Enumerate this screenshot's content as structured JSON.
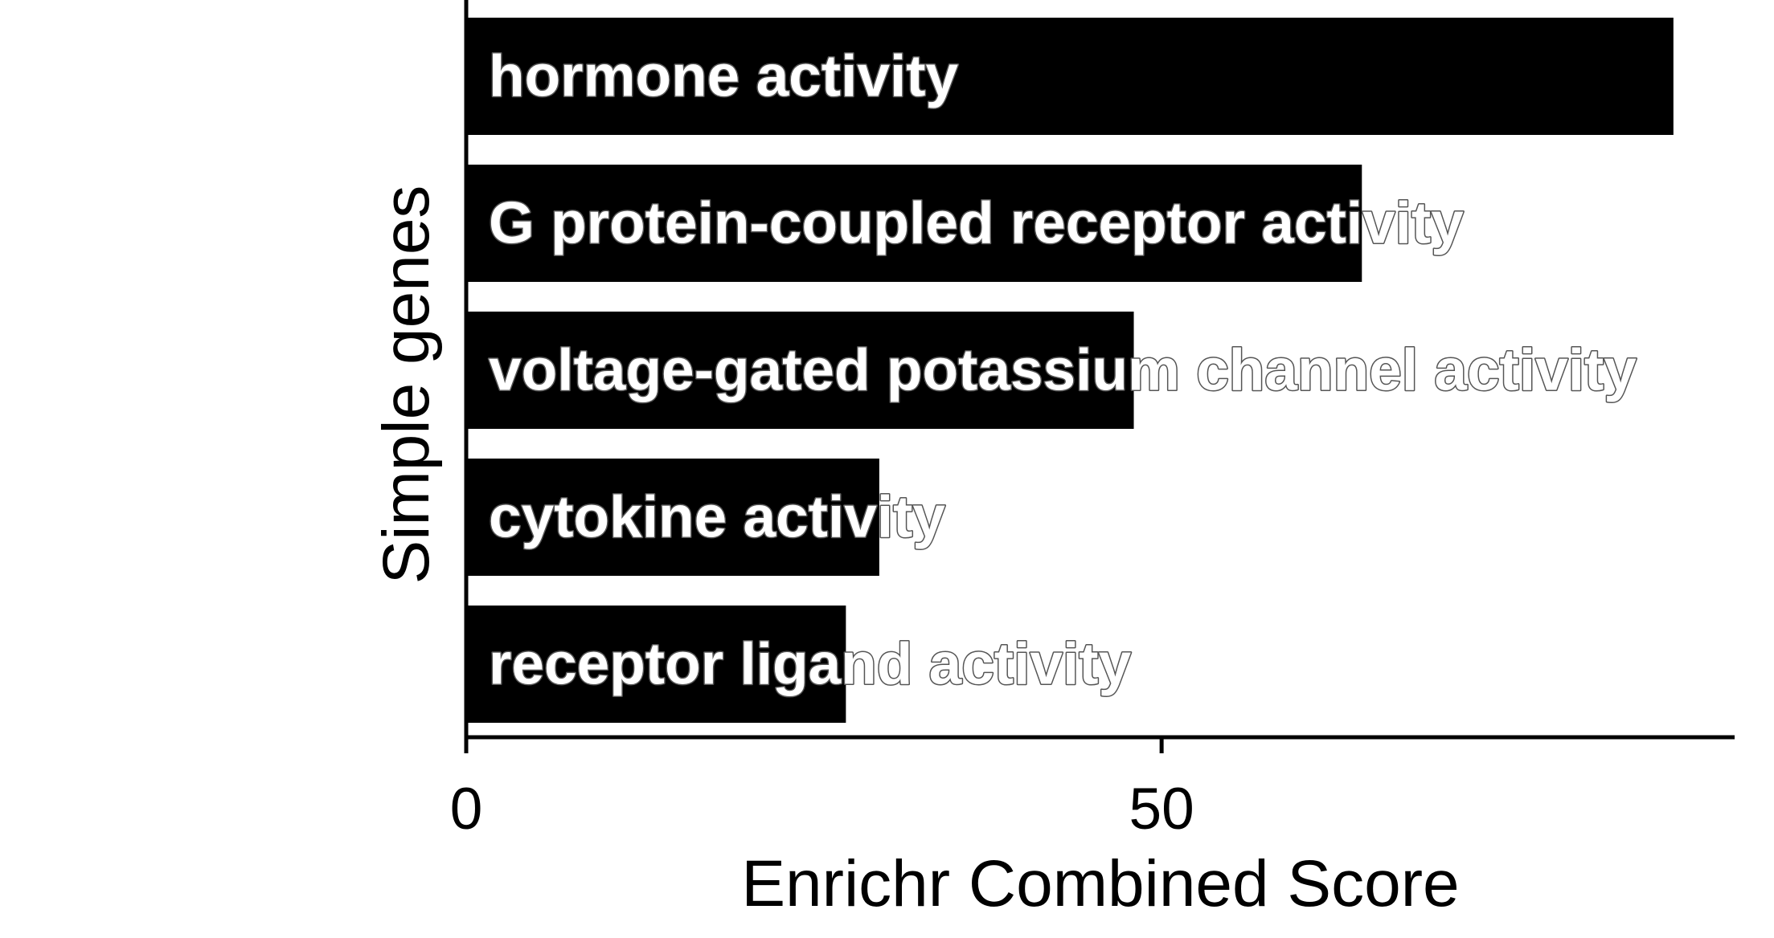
{
  "chart_data": {
    "type": "bar",
    "orientation": "horizontal",
    "categories": [
      "hormone activity",
      "G protein-coupled receptor activity",
      "voltage-gated potassium channel activity",
      "cytokine activity",
      "receptor ligand activity"
    ],
    "values": [
      86.8,
      64.4,
      48.0,
      29.7,
      27.3
    ],
    "xlabel": "Enrichr Combined Score",
    "ylabel": "Simple genes",
    "xlim": [
      0,
      91.2
    ],
    "xticks": [
      0,
      50
    ],
    "xtick_labels": [
      "0",
      "50"
    ],
    "grid": false,
    "legend": "none",
    "colors": {
      "bar": "#000000",
      "label_fill": "#ffffff",
      "label_outline": "#555555",
      "axis": "#000000"
    }
  }
}
